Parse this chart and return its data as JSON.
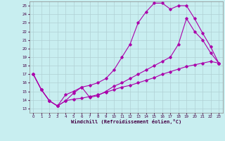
{
  "xlabel": "Windchill (Refroidissement éolien,°C)",
  "background_color": "#c8eef0",
  "grid_color": "#b0d0d4",
  "line_color": "#aa00aa",
  "xlim": [
    -0.5,
    23.5
  ],
  "ylim": [
    12.5,
    25.5
  ],
  "xticks": [
    0,
    1,
    2,
    3,
    4,
    5,
    6,
    7,
    8,
    9,
    10,
    11,
    12,
    13,
    14,
    15,
    16,
    17,
    18,
    19,
    20,
    21,
    22,
    23
  ],
  "yticks": [
    13,
    14,
    15,
    16,
    17,
    18,
    19,
    20,
    21,
    22,
    23,
    24,
    25
  ],
  "line1_x": [
    0,
    1,
    2,
    3,
    4,
    5,
    6,
    7,
    8,
    9,
    10,
    11,
    12,
    13,
    14,
    15,
    16,
    17,
    18,
    19,
    20,
    21,
    22,
    23
  ],
  "line1_y": [
    17.0,
    15.2,
    13.9,
    13.3,
    13.9,
    14.1,
    14.2,
    14.4,
    14.6,
    14.9,
    15.2,
    15.5,
    15.7,
    16.0,
    16.3,
    16.6,
    17.0,
    17.3,
    17.6,
    17.9,
    18.1,
    18.3,
    18.5,
    18.3
  ],
  "line2_x": [
    0,
    1,
    2,
    3,
    4,
    5,
    6,
    7,
    8,
    9,
    10,
    11,
    12,
    13,
    14,
    15,
    16,
    17,
    18,
    19,
    20,
    21,
    22,
    23
  ],
  "line2_y": [
    17.0,
    15.2,
    13.9,
    13.3,
    14.6,
    15.0,
    15.5,
    15.7,
    16.0,
    16.5,
    17.5,
    19.0,
    20.5,
    23.0,
    24.3,
    25.3,
    25.3,
    24.6,
    25.0,
    25.0,
    23.5,
    21.8,
    20.2,
    18.3
  ],
  "line3_x": [
    0,
    1,
    2,
    3,
    4,
    5,
    6,
    7,
    8,
    9,
    10,
    11,
    12,
    13,
    14,
    15,
    16,
    17,
    18,
    19,
    20,
    21,
    22,
    23
  ],
  "line3_y": [
    17.0,
    15.2,
    13.9,
    13.3,
    13.9,
    14.8,
    15.5,
    14.3,
    14.5,
    15.0,
    15.6,
    16.0,
    16.5,
    17.0,
    17.5,
    18.0,
    18.5,
    19.0,
    20.5,
    23.5,
    22.0,
    21.0,
    19.5,
    18.3
  ],
  "marker": "D",
  "markersize": 1.8,
  "linewidth": 0.8
}
